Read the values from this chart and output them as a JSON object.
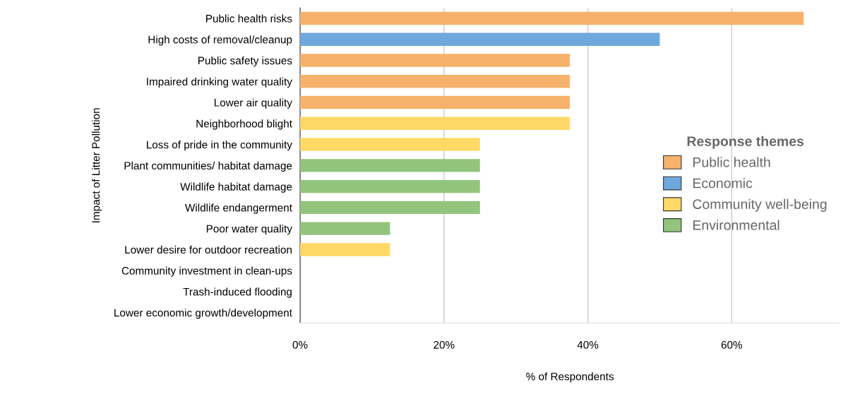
{
  "chart_data": {
    "type": "bar",
    "orientation": "horizontal",
    "xlabel": "% of Respondents",
    "ylabel": "Impact of Litter Pollution",
    "legend_title": "Response themes",
    "categories": [
      "Public health risks",
      "High costs of removal/cleanup",
      "Public safety issues",
      "Impaired drinking water quality",
      "Lower air quality",
      "Neighborhood blight",
      "Loss of pride in the community",
      "Plant communities/ habitat damage",
      "Wildlife habitat damage",
      "Wildlife endangerment",
      "Poor water quality",
      "Lower desire for outdoor recreation",
      "Community investment in clean-ups",
      "Trash-induced flooding",
      "Lower economic growth/development"
    ],
    "series": [
      {
        "name": "Public health",
        "color": "#f6b26b",
        "values": [
          70,
          null,
          37.5,
          37.5,
          37.5,
          null,
          null,
          null,
          null,
          null,
          null,
          null,
          0,
          0,
          0
        ]
      },
      {
        "name": "Economic",
        "color": "#6fa8dc",
        "values": [
          null,
          50,
          null,
          null,
          null,
          null,
          null,
          null,
          null,
          null,
          null,
          null,
          null,
          null,
          null
        ]
      },
      {
        "name": "Community well-being",
        "color": "#ffd966",
        "values": [
          null,
          null,
          null,
          null,
          null,
          37.5,
          25,
          null,
          null,
          null,
          null,
          12.5,
          null,
          null,
          null
        ]
      },
      {
        "name": "Environmental",
        "color": "#93c47d",
        "values": [
          null,
          null,
          null,
          null,
          null,
          null,
          null,
          25,
          25,
          25,
          12.5,
          null,
          null,
          null,
          null
        ]
      }
    ],
    "xlim": [
      0,
      75
    ],
    "xticks": [
      {
        "value": 0,
        "label": "0%"
      },
      {
        "value": 20,
        "label": "20%"
      },
      {
        "value": 40,
        "label": "40%"
      },
      {
        "value": 60,
        "label": "60%"
      }
    ],
    "grid": "x",
    "legend": "right"
  }
}
